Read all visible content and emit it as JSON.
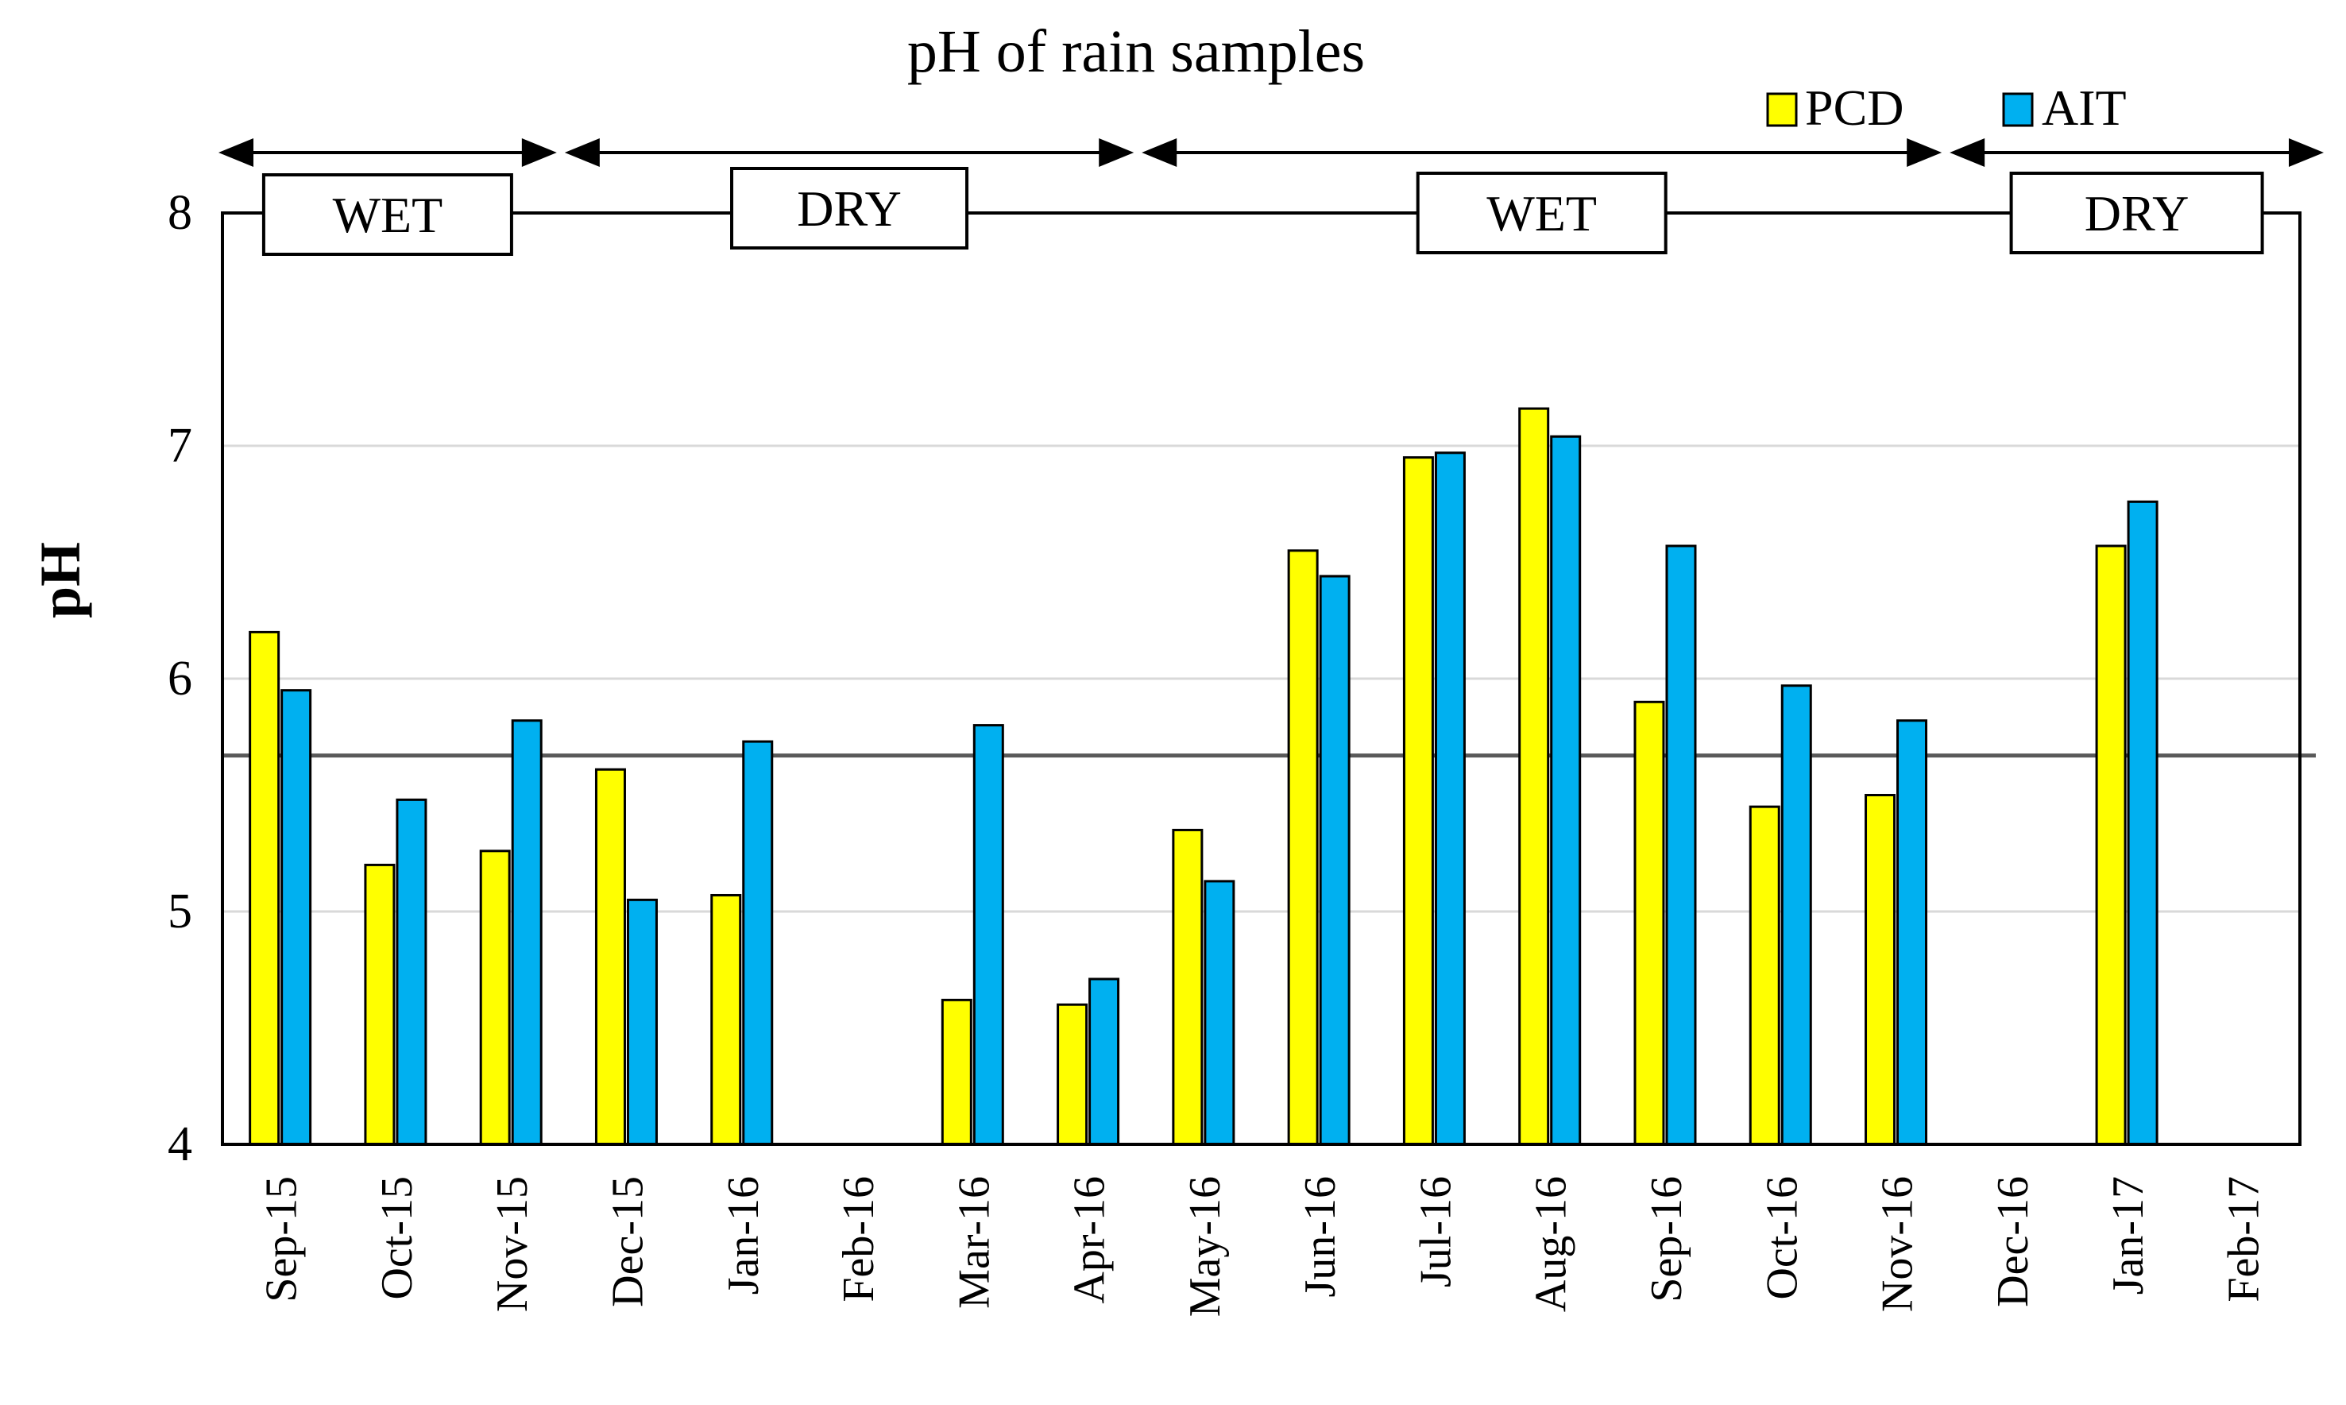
{
  "chart_data": {
    "type": "bar",
    "title": "pH of rain samples",
    "xlabel": "",
    "ylabel": "pH",
    "ylim": [
      4,
      8
    ],
    "yticks": [
      4,
      5,
      6,
      7,
      8
    ],
    "grid": true,
    "legend_position": "top-right",
    "categories": [
      "Sep-15",
      "Oct-15",
      "Nov-15",
      "Dec-15",
      "Jan-16",
      "Feb-16",
      "Mar-16",
      "Apr-16",
      "May-16",
      "Jun-16",
      "Jul-16",
      "Aug-16",
      "Sep-16",
      "Oct-16",
      "Nov-16",
      "Dec-16",
      "Jan-17",
      "Feb-17"
    ],
    "series": [
      {
        "name": "PCD",
        "color": "#ffff00",
        "values": [
          6.2,
          5.2,
          5.26,
          5.61,
          5.07,
          null,
          4.62,
          4.6,
          5.35,
          6.55,
          6.95,
          7.16,
          5.9,
          5.45,
          5.5,
          null,
          6.57,
          null
        ]
      },
      {
        "name": "AIT",
        "color": "#00b0f0",
        "values": [
          5.95,
          5.48,
          5.82,
          5.05,
          5.73,
          null,
          5.8,
          4.71,
          5.13,
          6.44,
          6.97,
          7.04,
          6.57,
          5.97,
          5.82,
          null,
          6.76,
          null
        ]
      }
    ],
    "reference_line": {
      "value": 5.67,
      "color": "#595959"
    },
    "seasons": [
      {
        "label": "WET",
        "start": 0,
        "end": 2
      },
      {
        "label": "DRY",
        "start": 3,
        "end": 7
      },
      {
        "label": "WET",
        "start": 8,
        "end": 14
      },
      {
        "label": "DRY",
        "start": 15,
        "end": 17
      }
    ]
  }
}
